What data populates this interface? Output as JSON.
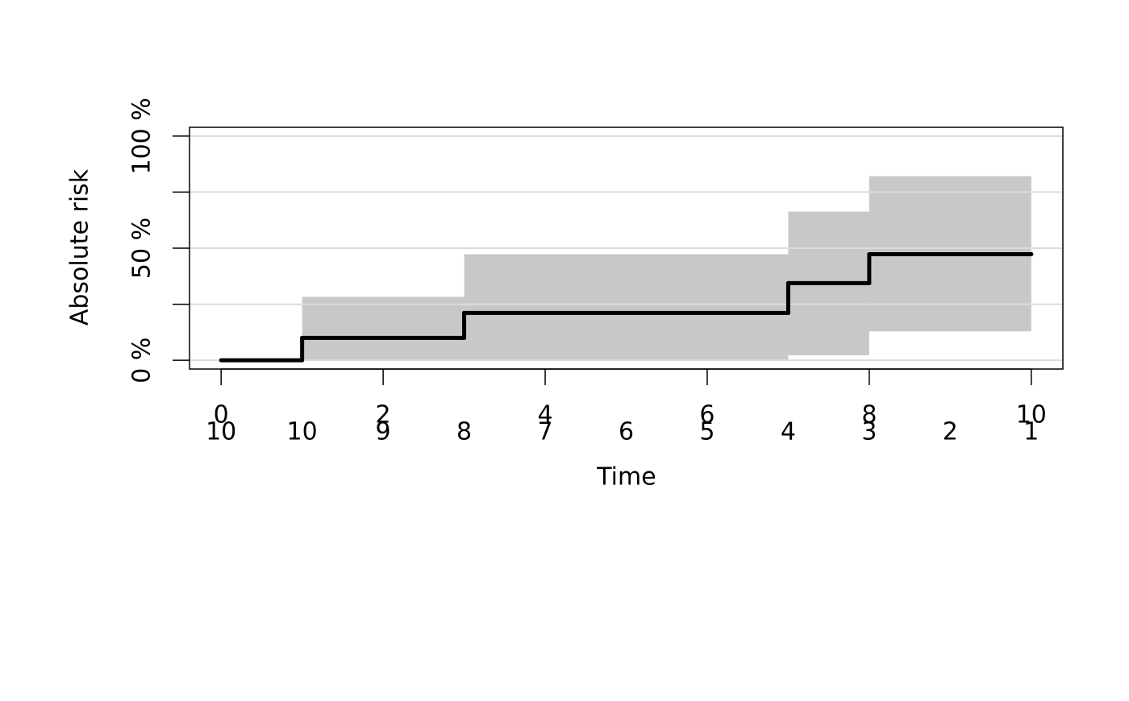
{
  "chart_data": {
    "type": "step",
    "x_label": "Time",
    "y_label": "Absolute risk",
    "x": [
      0,
      1,
      3,
      7,
      8,
      10
    ],
    "values": [
      0,
      10,
      21.1,
      34.4,
      47.3,
      47.3
    ],
    "ci_lower": [
      0,
      0,
      0,
      2.2,
      12.9,
      12.9
    ],
    "ci_upper": [
      0,
      28.3,
      47.3,
      66.3,
      82.1,
      82.1
    ],
    "color": "#000000",
    "band_color": "#c8c8c8",
    "xlim": [
      -0.39,
      10.39
    ],
    "xticks": [
      0,
      2,
      4,
      6,
      8,
      10
    ],
    "ylim": [
      -3.9,
      103.9
    ],
    "yticks": [
      {
        "value": 0,
        "label": "0 %"
      },
      {
        "value": 25,
        "label": null
      },
      {
        "value": 50,
        "label": "50 %"
      },
      {
        "value": 75,
        "label": null
      },
      {
        "value": 100,
        "label": "100 %"
      }
    ],
    "grid": true,
    "at_risk_times": [
      0,
      1,
      2,
      3,
      4,
      5,
      6,
      7,
      8,
      9,
      10
    ],
    "at_risk": [
      10,
      10,
      9,
      8,
      7,
      6,
      5,
      4,
      3,
      2,
      1
    ]
  }
}
